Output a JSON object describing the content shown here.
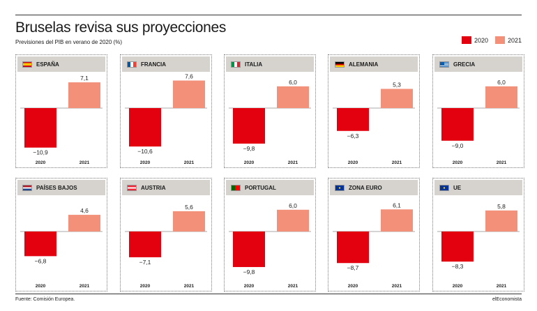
{
  "title": "Bruselas revisa sus proyecciones",
  "subtitle": "Previsiones del PIB en verano de 2020 (%)",
  "legend": [
    {
      "label": "2020",
      "color": "#e3000f"
    },
    {
      "label": "2021",
      "color": "#f2907a"
    }
  ],
  "source": "Fuente: Comisión Europea.",
  "brand": "elEconomista",
  "chart_data": {
    "type": "bar",
    "categories": [
      "2020",
      "2021"
    ],
    "ylim": [
      -12,
      9
    ],
    "panels": [
      {
        "country": "ESPAÑA",
        "flag": "spain-flag-icon",
        "values": [
          -10.9,
          7.1
        ],
        "labels": [
          "−10,9",
          "7,1"
        ]
      },
      {
        "country": "FRANCIA",
        "flag": "france-flag-icon",
        "values": [
          -10.6,
          7.6
        ],
        "labels": [
          "−10,6",
          "7,6"
        ]
      },
      {
        "country": "ITALIA",
        "flag": "italy-flag-icon",
        "values": [
          -9.8,
          6.0
        ],
        "labels": [
          "−9,8",
          "6,0"
        ]
      },
      {
        "country": "ALEMANIA",
        "flag": "germany-flag-icon",
        "values": [
          -6.3,
          5.3
        ],
        "labels": [
          "−6,3",
          "5,3"
        ]
      },
      {
        "country": "GRECIA",
        "flag": "greece-flag-icon",
        "values": [
          -9.0,
          6.0
        ],
        "labels": [
          "−9,0",
          "6,0"
        ]
      },
      {
        "country": "PAÍSES BAJOS",
        "flag": "netherlands-flag-icon",
        "values": [
          -6.8,
          4.6
        ],
        "labels": [
          "−6,8",
          "4,6"
        ]
      },
      {
        "country": "AUSTRIA",
        "flag": "austria-flag-icon",
        "values": [
          -7.1,
          5.6
        ],
        "labels": [
          "−7,1",
          "5,6"
        ]
      },
      {
        "country": "PORTUGAL",
        "flag": "portugal-flag-icon",
        "values": [
          -9.8,
          6.0
        ],
        "labels": [
          "−9,8",
          "6,0"
        ]
      },
      {
        "country": "ZONA EURO",
        "flag": "eu-flag-icon",
        "values": [
          -8.7,
          6.1
        ],
        "labels": [
          "−8,7",
          "6,1"
        ]
      },
      {
        "country": "UE",
        "flag": "eu-flag-icon",
        "values": [
          -8.3,
          5.8
        ],
        "labels": [
          "−8,3",
          "5,8"
        ]
      }
    ]
  }
}
